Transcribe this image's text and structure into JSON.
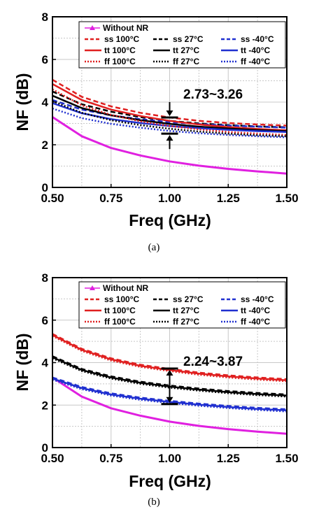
{
  "chart_data": [
    {
      "type": "line",
      "caption": "(a)",
      "xlabel": "Freq (GHz)",
      "ylabel": "NF (dB)",
      "xlim": [
        0.5,
        1.5
      ],
      "ylim": [
        0,
        8
      ],
      "xticks": [
        "0.50",
        "0.75",
        "1.00",
        "1.25",
        "1.50"
      ],
      "yticks": [
        "0",
        "2",
        "4",
        "6",
        "8"
      ],
      "grid": true,
      "legend_position": "top",
      "annotation": {
        "text": "2.73~3.26",
        "x": 1.0,
        "y_low": 2.52,
        "y_high": 3.28
      },
      "x": [
        0.5,
        0.625,
        0.75,
        0.875,
        1.0,
        1.125,
        1.25,
        1.375,
        1.5
      ],
      "series": [
        {
          "name": "Without NR",
          "color": "#e020e0",
          "dash": "solid",
          "width": 3,
          "values": [
            3.3,
            2.4,
            1.85,
            1.5,
            1.22,
            1.02,
            0.87,
            0.75,
            0.65
          ]
        },
        {
          "name": "ss 100°C",
          "color": "#e02020",
          "dash": "dashed",
          "width": 2.5,
          "values": [
            5.05,
            4.25,
            3.8,
            3.5,
            3.28,
            3.12,
            3.02,
            2.95,
            2.9
          ]
        },
        {
          "name": "ss 27°C",
          "color": "#000000",
          "dash": "dashed",
          "width": 2.5,
          "values": [
            4.5,
            3.9,
            3.55,
            3.3,
            3.12,
            3.0,
            2.92,
            2.86,
            2.82
          ]
        },
        {
          "name": "ss -40°C",
          "color": "#2030d0",
          "dash": "dashed",
          "width": 2.5,
          "values": [
            4.1,
            3.65,
            3.38,
            3.2,
            3.06,
            2.97,
            2.9,
            2.85,
            2.8
          ]
        },
        {
          "name": "tt 100°C",
          "color": "#e02020",
          "dash": "solid",
          "width": 2.5,
          "values": [
            4.85,
            4.1,
            3.65,
            3.35,
            3.12,
            2.95,
            2.83,
            2.74,
            2.68
          ]
        },
        {
          "name": "tt 27°C",
          "color": "#000000",
          "dash": "solid",
          "width": 2.5,
          "values": [
            4.3,
            3.72,
            3.38,
            3.15,
            2.98,
            2.85,
            2.76,
            2.69,
            2.64
          ]
        },
        {
          "name": "tt -40°C",
          "color": "#2030d0",
          "dash": "solid",
          "width": 2.5,
          "values": [
            3.95,
            3.48,
            3.2,
            3.02,
            2.88,
            2.78,
            2.7,
            2.64,
            2.6
          ]
        },
        {
          "name": "ff 100°C",
          "color": "#e02020",
          "dash": "dotted",
          "width": 2.5,
          "values": [
            4.6,
            3.85,
            3.4,
            3.1,
            2.88,
            2.72,
            2.6,
            2.52,
            2.46
          ]
        },
        {
          "name": "ff 27°C",
          "color": "#000000",
          "dash": "dotted",
          "width": 2.5,
          "values": [
            4.05,
            3.5,
            3.15,
            2.92,
            2.75,
            2.62,
            2.52,
            2.45,
            2.4
          ]
        },
        {
          "name": "ff -40°C",
          "color": "#2030d0",
          "dash": "dotted",
          "width": 2.5,
          "values": [
            3.7,
            3.25,
            2.98,
            2.8,
            2.65,
            2.54,
            2.46,
            2.4,
            2.35
          ]
        }
      ]
    },
    {
      "type": "line",
      "caption": "(b)",
      "xlabel": "Freq (GHz)",
      "ylabel": "NF (dB)",
      "xlim": [
        0.5,
        1.5
      ],
      "ylim": [
        0,
        8
      ],
      "xticks": [
        "0.50",
        "0.75",
        "1.00",
        "1.25",
        "1.50"
      ],
      "yticks": [
        "0",
        "2",
        "4",
        "6",
        "8"
      ],
      "grid": true,
      "legend_position": "top",
      "annotation": {
        "text": "2.24~3.87",
        "x": 1.0,
        "y_low": 2.05,
        "y_high": 3.72
      },
      "x": [
        0.5,
        0.625,
        0.75,
        0.875,
        1.0,
        1.125,
        1.25,
        1.375,
        1.5
      ],
      "series": [
        {
          "name": "Without NR",
          "color": "#e020e0",
          "dash": "solid",
          "width": 3,
          "values": [
            3.3,
            2.4,
            1.85,
            1.5,
            1.22,
            1.02,
            0.87,
            0.75,
            0.65
          ]
        },
        {
          "name": "ss 100°C",
          "color": "#e02020",
          "dash": "dashed",
          "width": 2.5,
          "values": [
            5.35,
            4.65,
            4.2,
            3.9,
            3.7,
            3.53,
            3.4,
            3.3,
            3.22
          ]
        },
        {
          "name": "ss 27°C",
          "color": "#000000",
          "dash": "dashed",
          "width": 2.5,
          "values": [
            4.3,
            3.7,
            3.35,
            3.1,
            2.92,
            2.78,
            2.66,
            2.57,
            2.5
          ]
        },
        {
          "name": "ss -40°C",
          "color": "#2030d0",
          "dash": "dashed",
          "width": 2.5,
          "values": [
            3.3,
            2.85,
            2.55,
            2.35,
            2.2,
            2.07,
            1.96,
            1.87,
            1.8
          ]
        },
        {
          "name": "tt 100°C",
          "color": "#e02020",
          "dash": "solid",
          "width": 2.5,
          "values": [
            5.3,
            4.6,
            4.15,
            3.85,
            3.65,
            3.48,
            3.35,
            3.25,
            3.17
          ]
        },
        {
          "name": "tt 27°C",
          "color": "#000000",
          "dash": "solid",
          "width": 2.5,
          "values": [
            4.25,
            3.65,
            3.3,
            3.05,
            2.87,
            2.73,
            2.61,
            2.52,
            2.45
          ]
        },
        {
          "name": "tt -40°C",
          "color": "#2030d0",
          "dash": "solid",
          "width": 2.5,
          "values": [
            3.25,
            2.8,
            2.5,
            2.3,
            2.15,
            2.02,
            1.91,
            1.82,
            1.75
          ]
        },
        {
          "name": "ff 100°C",
          "color": "#e02020",
          "dash": "dotted",
          "width": 2.5,
          "values": [
            5.25,
            4.55,
            4.1,
            3.8,
            3.6,
            3.43,
            3.3,
            3.2,
            3.12
          ]
        },
        {
          "name": "ff 27°C",
          "color": "#000000",
          "dash": "dotted",
          "width": 2.5,
          "values": [
            4.2,
            3.6,
            3.25,
            3.0,
            2.82,
            2.68,
            2.56,
            2.47,
            2.4
          ]
        },
        {
          "name": "ff -40°C",
          "color": "#2030d0",
          "dash": "dotted",
          "width": 2.5,
          "values": [
            3.2,
            2.75,
            2.45,
            2.25,
            2.1,
            1.97,
            1.86,
            1.77,
            1.7
          ]
        }
      ]
    }
  ]
}
